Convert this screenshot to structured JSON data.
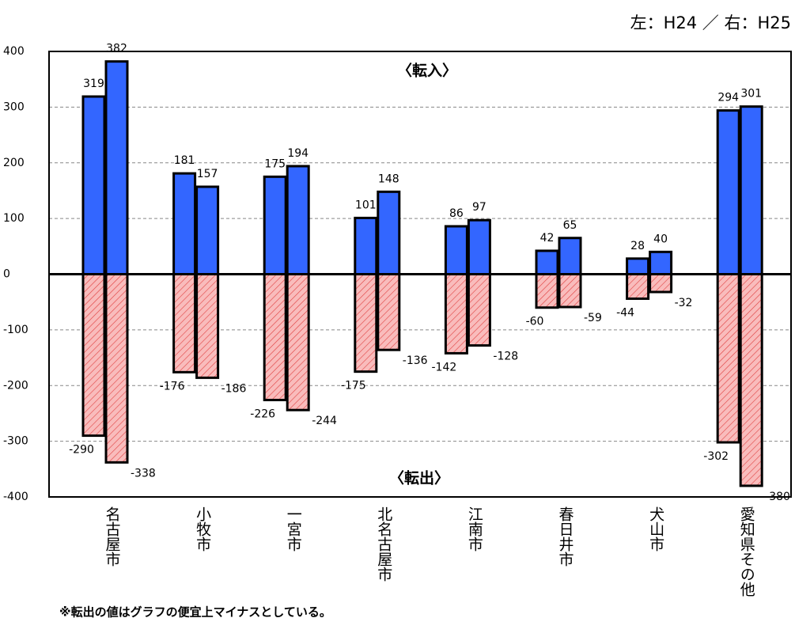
{
  "chart_data": {
    "type": "bar",
    "subtitle": "左：H24 ／ 右：H25",
    "annotations": [
      "〈転入〉",
      "〈転出〉"
    ],
    "note": "※転出の値はグラフの便宜上マイナスとしている。",
    "categories": [
      "名古屋市",
      "小牧市",
      "一宮市",
      "北名古屋市",
      "江南市",
      "春日井市",
      "犬山市",
      "愛知県その他"
    ],
    "series": [
      {
        "color": "#3366ff",
        "values": [
          319,
          181,
          175,
          101,
          86,
          42,
          28,
          294
        ]
      },
      {
        "color": "#3366ff",
        "values": [
          382,
          157,
          194,
          148,
          97,
          65,
          40,
          301
        ]
      },
      {
        "color": "#f9bcbc",
        "values": [
          -290,
          -176,
          -226,
          -175,
          -142,
          -60,
          -44,
          -302
        ]
      },
      {
        "color": "#f9bcbc",
        "values": [
          -338,
          -186,
          -244,
          -136,
          -128,
          -59,
          -32,
          -380
        ]
      }
    ],
    "ylim": [
      -400,
      400
    ],
    "yticks": [
      -400,
      -300,
      -200,
      -100,
      0,
      100,
      200,
      300,
      400
    ],
    "grid": true
  }
}
